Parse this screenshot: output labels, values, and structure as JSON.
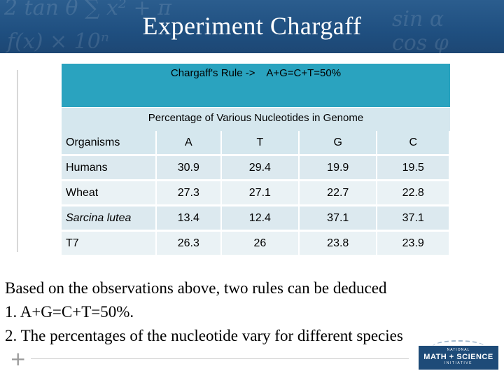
{
  "title": "Experiment Chargaff",
  "rule_box": {
    "label": "Chargaff's Rule ->",
    "formula": "A+G=C+T=50%"
  },
  "table": {
    "caption": "Percentage of Various Nucleotides in Genome",
    "headers": [
      "Organisms",
      "A",
      "T",
      "G",
      "C"
    ],
    "rows": [
      [
        "Humans",
        "30.9",
        "29.4",
        "19.9",
        "19.5"
      ],
      [
        "Wheat",
        "27.3",
        "27.1",
        "22.7",
        "22.8"
      ],
      [
        "Sarcina lutea",
        "13.4",
        "12.4",
        "37.1",
        "37.1"
      ],
      [
        "T7",
        "26.3",
        "26",
        "23.8",
        "23.9"
      ]
    ]
  },
  "conclusion": {
    "intro": "Based on the observations above, two rules can be deduced",
    "points": [
      "1.  A+G=C+T=50%.",
      "2.  The percentages of the nucleotide vary for different species"
    ]
  },
  "logo": {
    "line1": "NATIONAL",
    "line2": "MATH + SCIENCE",
    "line3": "INITIATIVE",
    "icon": "nmsi-logo-icon",
    "color": "#1e4b78"
  },
  "decor": {
    "plus_icon": "plus-icon"
  }
}
